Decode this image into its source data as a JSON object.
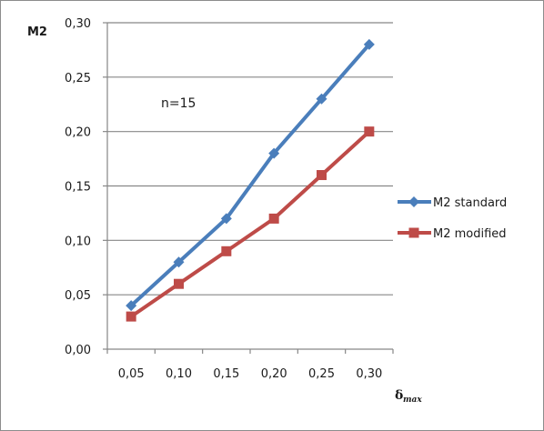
{
  "chart_data": {
    "type": "line",
    "categories": [
      "0,05",
      "0,10",
      "0,15",
      "0,20",
      "0,25",
      "0,30"
    ],
    "yticks": [
      "0,00",
      "0,05",
      "0,10",
      "0,15",
      "0,20",
      "0,25",
      "0,30"
    ],
    "ylim": [
      0,
      0.3
    ],
    "ylabel": "M2",
    "xlabel_main": "δ",
    "xlabel_sub": "max",
    "annotation": "n=15",
    "grid": true,
    "legend_position": "right",
    "series": [
      {
        "name": "M2 standard",
        "values": [
          0.04,
          0.08,
          0.12,
          0.18,
          0.23,
          0.28
        ],
        "color": "#4a7ebb",
        "marker": "diamond"
      },
      {
        "name": "M2 modified",
        "values": [
          0.03,
          0.06,
          0.09,
          0.12,
          0.16,
          0.2
        ],
        "color": "#be4b48",
        "marker": "square"
      }
    ]
  }
}
